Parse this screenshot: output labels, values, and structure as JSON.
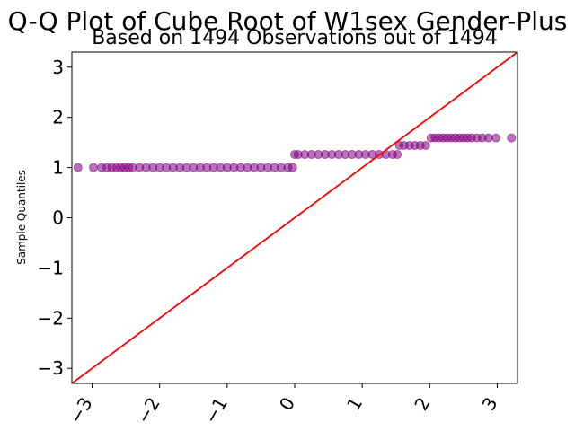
{
  "chart_data": {
    "type": "scatter",
    "title": "Q-Q Plot of Cube Root of W1sex Gender-Plus",
    "subtitle": "Based on 1494 Observations out of 1494",
    "xlabel": "",
    "ylabel": "Sample Quantiles",
    "xlim": [
      -3.3,
      3.3
    ],
    "ylim": [
      -3.3,
      3.3
    ],
    "xticks": [
      -3,
      -2,
      -1,
      0,
      1,
      2,
      3
    ],
    "yticks": [
      -3,
      -2,
      -1,
      0,
      1,
      2,
      3
    ],
    "xtick_labels": [
      "−3",
      "−2",
      "−1",
      "0",
      "1",
      "2",
      "3"
    ],
    "ytick_labels": [
      "−3",
      "−2",
      "−1",
      "0",
      "1",
      "2",
      "3"
    ],
    "grid": false,
    "colors": {
      "points": "#800080",
      "reference_line": "#ff0000"
    },
    "reference_line": {
      "slope": 1,
      "intercept": 0
    },
    "series": [
      {
        "marker": "circle",
        "x": [
          -3.21,
          -2.98,
          -2.86,
          -2.78,
          -2.71,
          -2.64,
          -2.58,
          -2.52,
          -2.46,
          -2.4,
          -2.3,
          -2.2,
          -2.1,
          -2.0,
          -1.9,
          -1.8,
          -1.7,
          -1.6,
          -1.5,
          -1.4,
          -1.3,
          -1.2,
          -1.1,
          -1.0,
          -0.9,
          -0.8,
          -0.7,
          -0.6,
          -0.5,
          -0.4,
          -0.3,
          -0.2,
          -0.1,
          -0.03,
          0.0,
          0.05,
          0.15,
          0.25,
          0.35,
          0.45,
          0.55,
          0.65,
          0.75,
          0.85,
          0.95,
          1.05,
          1.15,
          1.25,
          1.35,
          1.45,
          1.52,
          1.55,
          1.62,
          1.7,
          1.78,
          1.86,
          1.94,
          2.02,
          2.08,
          2.14,
          2.2,
          2.26,
          2.32,
          2.38,
          2.44,
          2.5,
          2.56,
          2.62,
          2.7,
          2.78,
          2.87,
          2.98,
          3.21
        ],
        "y": [
          1.0,
          1.0,
          1.0,
          1.0,
          1.0,
          1.0,
          1.0,
          1.0,
          1.0,
          1.0,
          1.0,
          1.0,
          1.0,
          1.0,
          1.0,
          1.0,
          1.0,
          1.0,
          1.0,
          1.0,
          1.0,
          1.0,
          1.0,
          1.0,
          1.0,
          1.0,
          1.0,
          1.0,
          1.0,
          1.0,
          1.0,
          1.0,
          1.0,
          1.0,
          1.26,
          1.26,
          1.26,
          1.26,
          1.26,
          1.26,
          1.26,
          1.26,
          1.26,
          1.26,
          1.26,
          1.26,
          1.26,
          1.26,
          1.26,
          1.26,
          1.26,
          1.44,
          1.44,
          1.44,
          1.44,
          1.44,
          1.44,
          1.59,
          1.59,
          1.59,
          1.59,
          1.59,
          1.59,
          1.59,
          1.59,
          1.59,
          1.59,
          1.59,
          1.59,
          1.59,
          1.59,
          1.59,
          1.59
        ]
      }
    ]
  }
}
